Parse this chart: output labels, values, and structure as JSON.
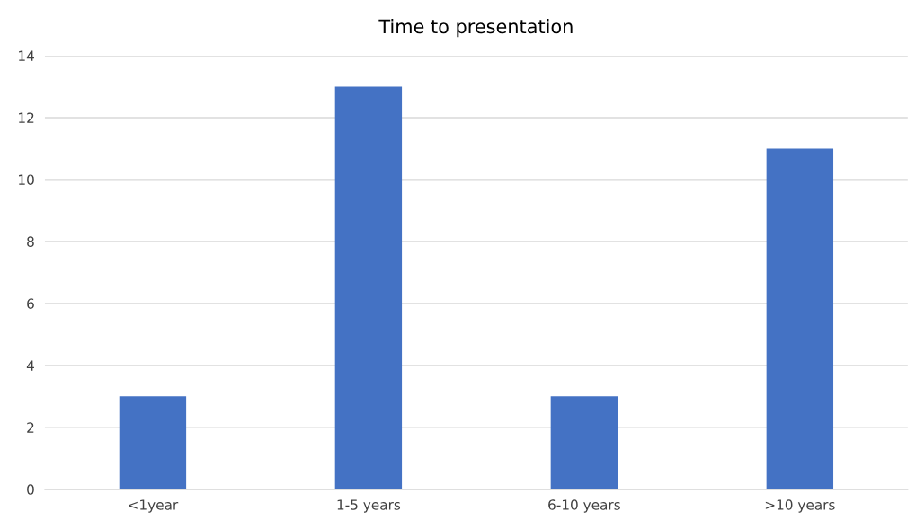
{
  "chart_data": {
    "type": "bar",
    "title": "Time to presentation",
    "categories": [
      "<1year",
      "1-5 years",
      "6-10 years",
      ">10 years"
    ],
    "values": [
      3,
      13,
      3,
      11
    ],
    "color": "#4472c4",
    "ylim": [
      0,
      14
    ],
    "yticks": [
      0,
      2,
      4,
      6,
      8,
      10,
      12,
      14
    ],
    "grid": "y"
  }
}
